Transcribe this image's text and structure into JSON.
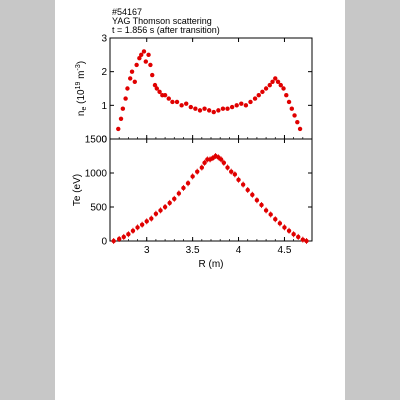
{
  "annotation": {
    "line1": "#54167",
    "line2": "YAG Thomson scattering",
    "line3": "t = 1.856 s (after transition)"
  },
  "chart_data": [
    {
      "type": "scatter",
      "panel": "top",
      "ylabel": "n_e (10^19 m^-3)",
      "xlim": [
        2.6,
        4.8
      ],
      "ylim": [
        0,
        3
      ],
      "yticks": [
        "0",
        "1",
        "2",
        "3"
      ],
      "xticks": [
        3,
        3.5,
        4,
        4.5
      ],
      "color": "#e00000",
      "series": [
        {
          "x": [
            2.69,
            2.72,
            2.74,
            2.77,
            2.79,
            2.82,
            2.84,
            2.87,
            2.89,
            2.92,
            2.94,
            2.97,
            2.99,
            3.02,
            3.04,
            3.06,
            3.09,
            3.11,
            3.14,
            3.17,
            3.2,
            3.24,
            3.28,
            3.33,
            3.38,
            3.43,
            3.48,
            3.53,
            3.58,
            3.63,
            3.68,
            3.73,
            3.78,
            3.83,
            3.88,
            3.93,
            3.98,
            4.03,
            4.08,
            4.13,
            4.18,
            4.22,
            4.26,
            4.3,
            4.34,
            4.37,
            4.4,
            4.43,
            4.46,
            4.49,
            4.52,
            4.55,
            4.58,
            4.61,
            4.64,
            4.67
          ],
          "y": [
            0.3,
            0.6,
            0.9,
            1.2,
            1.5,
            1.8,
            2.0,
            1.7,
            2.2,
            2.4,
            2.5,
            2.6,
            2.3,
            2.5,
            2.2,
            1.9,
            1.6,
            1.5,
            1.4,
            1.3,
            1.3,
            1.2,
            1.1,
            1.1,
            1.0,
            1.05,
            0.95,
            0.9,
            0.85,
            0.9,
            0.85,
            0.8,
            0.85,
            0.9,
            0.9,
            0.95,
            1.0,
            1.05,
            1.0,
            1.1,
            1.2,
            1.3,
            1.4,
            1.5,
            1.6,
            1.7,
            1.8,
            1.7,
            1.6,
            1.5,
            1.3,
            1.1,
            0.9,
            0.7,
            0.5,
            0.3
          ]
        }
      ]
    },
    {
      "type": "scatter",
      "panel": "bottom",
      "xlabel": "R (m)",
      "ylabel": "Te (eV)",
      "xlim": [
        2.6,
        4.8
      ],
      "ylim": [
        0,
        1500
      ],
      "yticks": [
        "0",
        "500",
        "1000",
        "1500"
      ],
      "xticks": [
        "3",
        "3.5",
        "4",
        "4.5"
      ],
      "color": "#e00000",
      "series": [
        {
          "x": [
            2.64,
            2.7,
            2.75,
            2.8,
            2.85,
            2.9,
            2.95,
            3.0,
            3.05,
            3.1,
            3.15,
            3.2,
            3.25,
            3.3,
            3.35,
            3.4,
            3.45,
            3.5,
            3.55,
            3.6,
            3.63,
            3.66,
            3.69,
            3.72,
            3.75,
            3.78,
            3.81,
            3.84,
            3.88,
            3.92,
            3.96,
            4.0,
            4.05,
            4.1,
            4.15,
            4.2,
            4.25,
            4.3,
            4.35,
            4.4,
            4.45,
            4.5,
            4.55,
            4.6,
            4.65,
            4.7,
            4.74
          ],
          "y": [
            0,
            30,
            60,
            100,
            150,
            200,
            240,
            290,
            330,
            400,
            450,
            500,
            560,
            620,
            700,
            780,
            850,
            950,
            1020,
            1080,
            1150,
            1200,
            1200,
            1220,
            1250,
            1230,
            1200,
            1150,
            1080,
            1020,
            980,
            900,
            830,
            750,
            680,
            600,
            530,
            450,
            390,
            320,
            260,
            200,
            150,
            100,
            60,
            20,
            0
          ]
        }
      ]
    }
  ]
}
